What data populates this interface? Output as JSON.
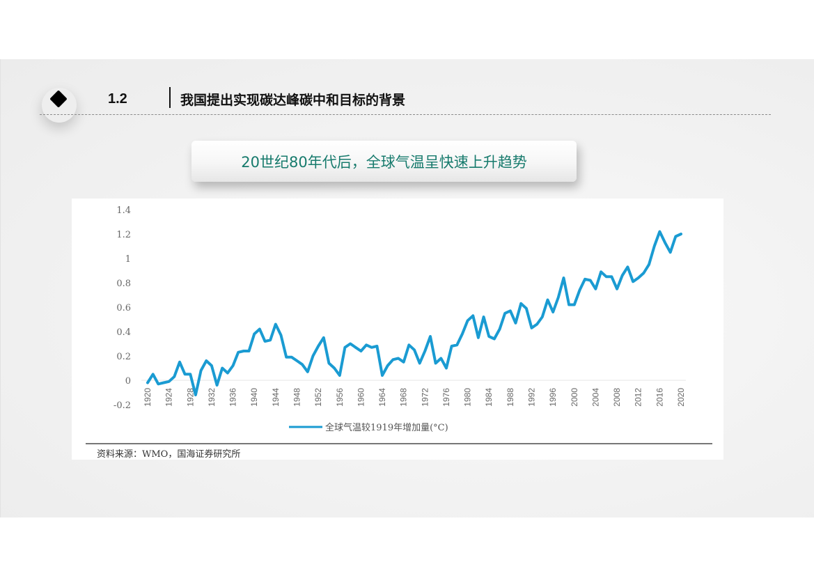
{
  "header": {
    "section_number": "1.2",
    "section_title": "我国提出实现碳达峰碳中和目标的背景"
  },
  "callout": {
    "text": "20世纪80年代后，全球气温呈快速上升趋势"
  },
  "source": {
    "text": "资料来源：WMO，国海证券研究所"
  },
  "colors": {
    "line": "#1a9bd2",
    "callout_text": "#167a6c",
    "axis_text": "#666666"
  },
  "chart_data": {
    "type": "line",
    "title": "",
    "xlabel": "",
    "ylabel": "",
    "ylim": [
      -0.2,
      1.4
    ],
    "yticks": [
      -0.2,
      0,
      0.2,
      0.4,
      0.6,
      0.8,
      1,
      1.2,
      1.4
    ],
    "ytick_labels": [
      "-0.2",
      "0",
      "0.2",
      "0.4",
      "0.6",
      "0.8",
      "1",
      "1.2",
      "1.4"
    ],
    "xtick_labels": [
      "1920",
      "1924",
      "1928",
      "1932",
      "1936",
      "1940",
      "1944",
      "1948",
      "1952",
      "1956",
      "1960",
      "1964",
      "1968",
      "1972",
      "1976",
      "1980",
      "1984",
      "1988",
      "1992",
      "1996",
      "2000",
      "2004",
      "2008",
      "2012",
      "2016",
      "2020"
    ],
    "grid": false,
    "legend_position": "bottom",
    "series": [
      {
        "name": "全球气温较1919年增加量(°C)",
        "x": [
          1920,
          1921,
          1922,
          1923,
          1924,
          1925,
          1926,
          1927,
          1928,
          1929,
          1930,
          1931,
          1932,
          1933,
          1934,
          1935,
          1936,
          1937,
          1938,
          1939,
          1940,
          1941,
          1942,
          1943,
          1944,
          1945,
          1946,
          1947,
          1948,
          1949,
          1950,
          1951,
          1952,
          1953,
          1954,
          1955,
          1956,
          1957,
          1958,
          1959,
          1960,
          1961,
          1962,
          1963,
          1964,
          1965,
          1966,
          1967,
          1968,
          1969,
          1970,
          1971,
          1972,
          1973,
          1974,
          1975,
          1976,
          1977,
          1978,
          1979,
          1980,
          1981,
          1982,
          1983,
          1984,
          1985,
          1986,
          1987,
          1988,
          1989,
          1990,
          1991,
          1992,
          1993,
          1994,
          1995,
          1996,
          1997,
          1998,
          1999,
          2000,
          2001,
          2002,
          2003,
          2004,
          2005,
          2006,
          2007,
          2008,
          2009,
          2010,
          2011,
          2012,
          2013,
          2014,
          2015,
          2016,
          2017,
          2018,
          2019,
          2020
        ],
        "values": [
          -0.02,
          0.05,
          -0.03,
          -0.02,
          -0.01,
          0.03,
          0.15,
          0.05,
          0.05,
          -0.12,
          0.08,
          0.16,
          0.12,
          -0.04,
          0.1,
          0.06,
          0.12,
          0.23,
          0.24,
          0.24,
          0.38,
          0.42,
          0.32,
          0.33,
          0.46,
          0.37,
          0.19,
          0.19,
          0.16,
          0.13,
          0.07,
          0.2,
          0.28,
          0.35,
          0.14,
          0.1,
          0.04,
          0.27,
          0.3,
          0.27,
          0.24,
          0.29,
          0.27,
          0.28,
          0.04,
          0.12,
          0.17,
          0.18,
          0.15,
          0.29,
          0.25,
          0.14,
          0.24,
          0.36,
          0.14,
          0.18,
          0.1,
          0.28,
          0.29,
          0.38,
          0.49,
          0.53,
          0.35,
          0.52,
          0.36,
          0.34,
          0.42,
          0.55,
          0.57,
          0.47,
          0.63,
          0.59,
          0.43,
          0.46,
          0.52,
          0.66,
          0.56,
          0.68,
          0.84,
          0.62,
          0.62,
          0.74,
          0.83,
          0.82,
          0.75,
          0.89,
          0.85,
          0.85,
          0.75,
          0.86,
          0.93,
          0.81,
          0.84,
          0.88,
          0.95,
          1.1,
          1.22,
          1.13,
          1.05,
          1.18,
          1.2
        ]
      }
    ]
  }
}
